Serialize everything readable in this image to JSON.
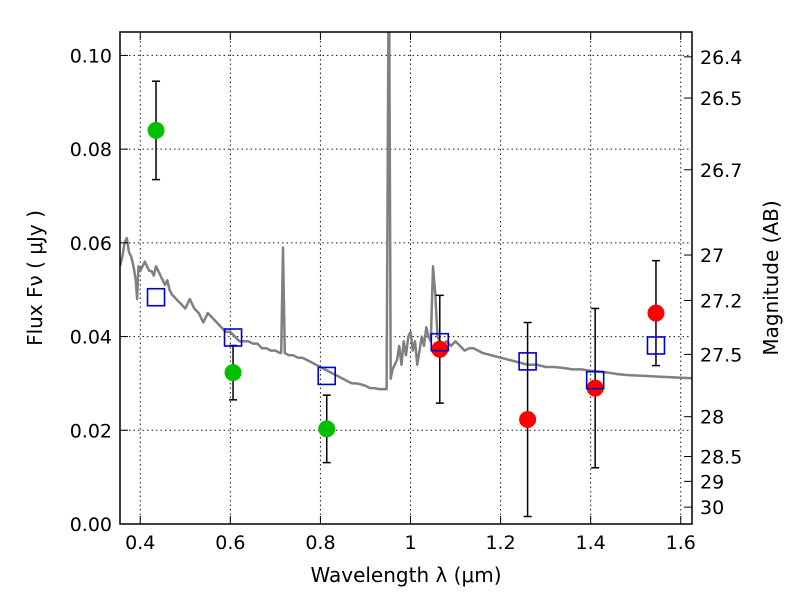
{
  "chart_data": {
    "type": "scatter",
    "title": "",
    "xlabel": "Wavelength  λ (μm)",
    "ylabel": "Flux  Fν  ( μJy )",
    "y2label": "Magnitude (AB)",
    "xlim": [
      0.355,
      1.625
    ],
    "ylim": [
      0.0,
      0.105
    ],
    "grid": true,
    "x_ticks": [
      0.4,
      0.6,
      0.8,
      1.0,
      1.2,
      1.4,
      1.6
    ],
    "x_tick_labels": [
      "0.4",
      "0.6",
      "0.8",
      "1",
      "1.2",
      "1.4",
      "1.6"
    ],
    "y_ticks": [
      0.0,
      0.02,
      0.04,
      0.06,
      0.08,
      0.1
    ],
    "y_tick_labels": [
      "0.00",
      "0.02",
      "0.04",
      "0.06",
      "0.08",
      "0.10"
    ],
    "mag_ticks": [
      {
        "label": "26.4",
        "flux": 0.0997
      },
      {
        "label": "26.5",
        "flux": 0.0909
      },
      {
        "label": "26.7",
        "flux": 0.0756
      },
      {
        "label": "27",
        "flux": 0.0574
      },
      {
        "label": "27.2",
        "flux": 0.0477
      },
      {
        "label": "27.5",
        "flux": 0.0362
      },
      {
        "label": "28",
        "flux": 0.0229
      },
      {
        "label": "28.5",
        "flux": 0.0144
      },
      {
        "label": "29",
        "flux": 0.0091
      },
      {
        "label": "30",
        "flux": 0.0036
      }
    ],
    "series": [
      {
        "marker": "circle",
        "color": "#00c000",
        "points": [
          {
            "x": 0.435,
            "y": 0.084,
            "yerr": 0.0105
          },
          {
            "x": 0.606,
            "y": 0.0323,
            "yerr": 0.0058
          },
          {
            "x": 0.814,
            "y": 0.0203,
            "yerr": 0.0072
          }
        ]
      },
      {
        "marker": "circle",
        "color": "#ff0000",
        "points": [
          {
            "x": 1.065,
            "y": 0.0373,
            "yerr": 0.0115
          },
          {
            "x": 1.26,
            "y": 0.0223,
            "yerr": 0.0207
          },
          {
            "x": 1.41,
            "y": 0.029,
            "yerr": 0.017
          },
          {
            "x": 1.545,
            "y": 0.045,
            "yerr": 0.0112
          }
        ]
      },
      {
        "marker": "open-square",
        "color": "#0000cc",
        "points": [
          {
            "x": 0.435,
            "y": 0.0484
          },
          {
            "x": 0.606,
            "y": 0.0398
          },
          {
            "x": 0.814,
            "y": 0.0316
          },
          {
            "x": 1.065,
            "y": 0.0388
          },
          {
            "x": 1.26,
            "y": 0.0347
          },
          {
            "x": 1.41,
            "y": 0.0307
          },
          {
            "x": 1.545,
            "y": 0.0381
          }
        ]
      },
      {
        "marker": "line",
        "color": "#808080",
        "points": [
          [
            0.355,
            0.055
          ],
          [
            0.36,
            0.057
          ],
          [
            0.365,
            0.06
          ],
          [
            0.37,
            0.061
          ],
          [
            0.375,
            0.058
          ],
          [
            0.38,
            0.057
          ],
          [
            0.385,
            0.055
          ],
          [
            0.39,
            0.052
          ],
          [
            0.393,
            0.048
          ],
          [
            0.396,
            0.055
          ],
          [
            0.4,
            0.054
          ],
          [
            0.405,
            0.055
          ],
          [
            0.41,
            0.056
          ],
          [
            0.415,
            0.055
          ],
          [
            0.42,
            0.054
          ],
          [
            0.425,
            0.054
          ],
          [
            0.43,
            0.053
          ],
          [
            0.435,
            0.055
          ],
          [
            0.44,
            0.054
          ],
          [
            0.445,
            0.053
          ],
          [
            0.45,
            0.052
          ],
          [
            0.455,
            0.051
          ],
          [
            0.46,
            0.052
          ],
          [
            0.465,
            0.05
          ],
          [
            0.47,
            0.049
          ],
          [
            0.48,
            0.048
          ],
          [
            0.49,
            0.047
          ],
          [
            0.5,
            0.046
          ],
          [
            0.51,
            0.048
          ],
          [
            0.52,
            0.046
          ],
          [
            0.53,
            0.045
          ],
          [
            0.54,
            0.043
          ],
          [
            0.55,
            0.045
          ],
          [
            0.56,
            0.044
          ],
          [
            0.57,
            0.043
          ],
          [
            0.58,
            0.042
          ],
          [
            0.59,
            0.041
          ],
          [
            0.6,
            0.041
          ],
          [
            0.61,
            0.04
          ],
          [
            0.62,
            0.039
          ],
          [
            0.63,
            0.039
          ],
          [
            0.64,
            0.039
          ],
          [
            0.65,
            0.0385
          ],
          [
            0.66,
            0.0385
          ],
          [
            0.67,
            0.0375
          ],
          [
            0.68,
            0.0375
          ],
          [
            0.69,
            0.037
          ],
          [
            0.7,
            0.037
          ],
          [
            0.71,
            0.0365
          ],
          [
            0.713,
            0.0365
          ],
          [
            0.717,
            0.059
          ],
          [
            0.721,
            0.0365
          ],
          [
            0.73,
            0.036
          ],
          [
            0.74,
            0.036
          ],
          [
            0.75,
            0.0355
          ],
          [
            0.76,
            0.0355
          ],
          [
            0.77,
            0.035
          ],
          [
            0.78,
            0.0345
          ],
          [
            0.79,
            0.034
          ],
          [
            0.8,
            0.0335
          ],
          [
            0.81,
            0.033
          ],
          [
            0.82,
            0.0325
          ],
          [
            0.83,
            0.032
          ],
          [
            0.84,
            0.0315
          ],
          [
            0.85,
            0.031
          ],
          [
            0.86,
            0.0305
          ],
          [
            0.87,
            0.03
          ],
          [
            0.88,
            0.03
          ],
          [
            0.89,
            0.0298
          ],
          [
            0.9,
            0.0295
          ],
          [
            0.91,
            0.029
          ],
          [
            0.92,
            0.029
          ],
          [
            0.93,
            0.0288
          ],
          [
            0.94,
            0.0288
          ],
          [
            0.947,
            0.0288
          ],
          [
            0.951,
            0.105
          ],
          [
            0.953,
            0.105
          ],
          [
            0.956,
            0.031
          ],
          [
            0.96,
            0.033
          ],
          [
            0.97,
            0.035
          ],
          [
            0.975,
            0.038
          ],
          [
            0.98,
            0.034
          ],
          [
            0.985,
            0.039
          ],
          [
            0.99,
            0.036
          ],
          [
            0.995,
            0.04
          ],
          [
            1.0,
            0.041
          ],
          [
            1.005,
            0.037
          ],
          [
            1.01,
            0.039
          ],
          [
            1.015,
            0.034
          ],
          [
            1.02,
            0.037
          ],
          [
            1.025,
            0.04
          ],
          [
            1.03,
            0.038
          ],
          [
            1.035,
            0.042
          ],
          [
            1.04,
            0.04
          ],
          [
            1.045,
            0.039
          ],
          [
            1.05,
            0.055
          ],
          [
            1.055,
            0.049
          ],
          [
            1.06,
            0.04
          ],
          [
            1.07,
            0.038
          ],
          [
            1.08,
            0.039
          ],
          [
            1.09,
            0.038
          ],
          [
            1.1,
            0.039
          ],
          [
            1.11,
            0.038
          ],
          [
            1.12,
            0.037
          ],
          [
            1.13,
            0.0375
          ],
          [
            1.14,
            0.0375
          ],
          [
            1.15,
            0.037
          ],
          [
            1.16,
            0.0365
          ],
          [
            1.18,
            0.036
          ],
          [
            1.2,
            0.0355
          ],
          [
            1.22,
            0.035
          ],
          [
            1.24,
            0.0345
          ],
          [
            1.26,
            0.034
          ],
          [
            1.28,
            0.034
          ],
          [
            1.3,
            0.0335
          ],
          [
            1.32,
            0.0335
          ],
          [
            1.34,
            0.0333
          ],
          [
            1.36,
            0.033
          ],
          [
            1.38,
            0.033
          ],
          [
            1.4,
            0.0327
          ],
          [
            1.42,
            0.0325
          ],
          [
            1.44,
            0.0323
          ],
          [
            1.46,
            0.032
          ],
          [
            1.48,
            0.0318
          ],
          [
            1.5,
            0.0317
          ],
          [
            1.52,
            0.0316
          ],
          [
            1.54,
            0.0315
          ],
          [
            1.56,
            0.0314
          ],
          [
            1.58,
            0.0313
          ],
          [
            1.6,
            0.0312
          ],
          [
            1.625,
            0.0311
          ]
        ]
      }
    ]
  }
}
